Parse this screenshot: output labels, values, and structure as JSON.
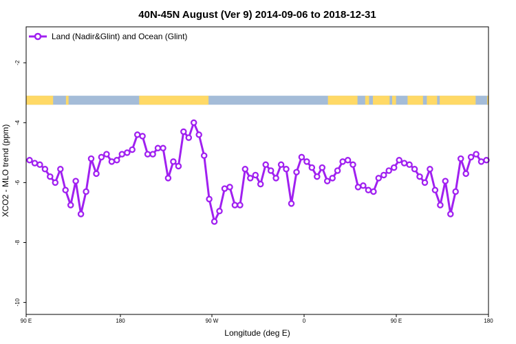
{
  "chart_data": {
    "type": "line",
    "title": "40N-45N August (Ver 9)   2014-09-06 to 2018-12-31",
    "xlabel": "Longitude (deg E)",
    "ylabel": "XCO2 - MLO trend (ppm)",
    "x_range_deg": [
      90,
      450
    ],
    "ylim": [
      -10.4,
      -0.8
    ],
    "x_ticks": [
      {
        "value": 90,
        "label": "90 E"
      },
      {
        "value": 180,
        "label": "180"
      },
      {
        "value": 270,
        "label": "90 W"
      },
      {
        "value": 360,
        "label": "0"
      },
      {
        "value": 450,
        "label": "90 E"
      },
      {
        "value": 540,
        "label": "180"
      }
    ],
    "y_ticks": [
      {
        "value": -2,
        "label": "-2"
      },
      {
        "value": -4,
        "label": "-4"
      },
      {
        "value": -6,
        "label": "-6"
      },
      {
        "value": -8,
        "label": "-8"
      },
      {
        "value": -10,
        "label": "-10"
      }
    ],
    "series": [
      {
        "name": "Land (Nadir&Glint) and Ocean (Glint)",
        "color": "#a020f0",
        "marker": "open-circle",
        "y": [
          -5.25,
          -5.35,
          -5.4,
          -5.55,
          -5.8,
          -6.0,
          -5.55,
          -6.25,
          -6.75,
          -5.95,
          -7.05,
          -6.3,
          -5.2,
          -5.7,
          -5.15,
          -5.05,
          -5.3,
          -5.25,
          -5.05,
          -5.0,
          -4.9,
          -4.4,
          -4.45,
          -5.05,
          -5.05,
          -4.85,
          -4.85,
          -5.85,
          -5.3,
          -5.45,
          -4.3,
          -4.5,
          -4.0,
          -4.4,
          -5.1,
          -6.55,
          -7.3,
          -6.95,
          -6.2,
          -6.15,
          -6.75,
          -6.75,
          -5.55,
          -5.85,
          -5.75,
          -6.05,
          -5.4,
          -5.6,
          -5.85,
          -5.4,
          -5.55,
          -6.7,
          -5.65,
          -5.15,
          -5.3,
          -5.5,
          -5.8,
          -5.5,
          -5.95,
          -5.85,
          -5.6,
          -5.3,
          -5.25,
          -5.4,
          -6.15,
          -6.1,
          -6.25,
          -6.3,
          -5.85,
          -5.75,
          -5.6,
          -5.5,
          -5.25,
          -5.35,
          -5.4,
          -5.55,
          -5.8,
          -6.0,
          -5.55,
          -6.25,
          -6.75,
          -5.95,
          -7.05,
          -6.3,
          -5.2,
          -5.7,
          -5.15,
          -5.05,
          -5.3,
          -5.25
        ]
      }
    ],
    "surface_strip": {
      "land_color": "#ffd966",
      "ocean_color": "#a4bcd8",
      "y_band": [
        -3.1,
        -3.4
      ],
      "land_segments_deg": [
        [
          90,
          111
        ],
        [
          121,
          123
        ],
        [
          178,
          232
        ],
        [
          325,
          348
        ],
        [
          354,
          357
        ],
        [
          360,
          373
        ],
        [
          375,
          378
        ],
        [
          387,
          399
        ],
        [
          402,
          410
        ],
        [
          412,
          440
        ],
        [
          449,
          451
        ],
        [
          456,
          490
        ]
      ]
    },
    "legend_position": "top-left",
    "grid": false
  }
}
